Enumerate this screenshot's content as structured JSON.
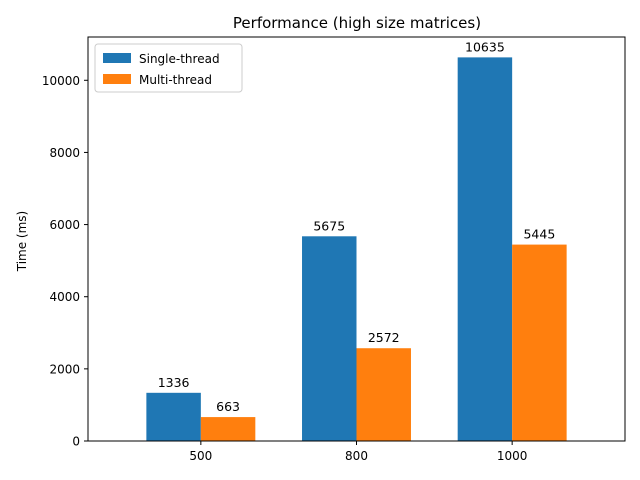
{
  "chart_data": {
    "type": "bar",
    "title": "Performance (high size matrices)",
    "xlabel": "",
    "ylabel": "Time (ms)",
    "categories": [
      "500",
      "800",
      "1000"
    ],
    "series": [
      {
        "name": "Single-thread",
        "color": "#1f77b4",
        "values": [
          1336,
          5675,
          10635
        ]
      },
      {
        "name": "Multi-thread",
        "color": "#ff7f0e",
        "values": [
          663,
          2572,
          5445
        ]
      }
    ],
    "ylim": [
      0,
      11200
    ],
    "yticks": [
      0,
      2000,
      4000,
      6000,
      8000,
      10000
    ],
    "grid": false,
    "legend": "top-left"
  }
}
